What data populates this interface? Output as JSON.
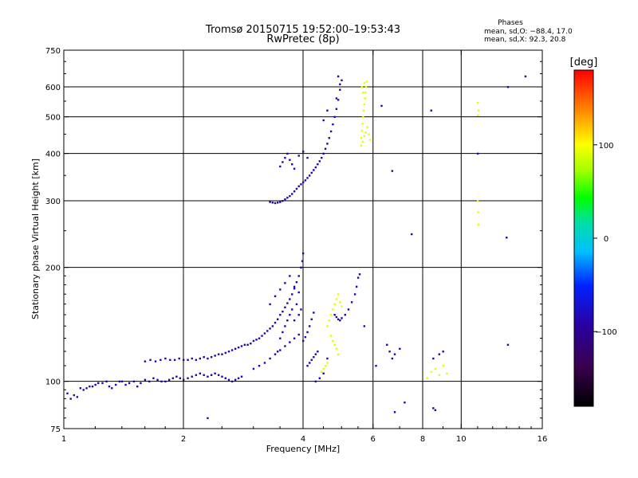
{
  "chart_data": {
    "type": "scatter",
    "title": "Tromsø 20150715 19:52:00–19:53:43",
    "subtitle": "RwPretec (8p)",
    "xlabel": "Frequency [MHz]",
    "ylabel": "Stationary phase Virtual Height [km]",
    "x_scale": "log",
    "y_scale": "log",
    "xlim": [
      1,
      16
    ],
    "ylim": [
      75,
      750
    ],
    "x_ticks": [
      1,
      2,
      4,
      6,
      8,
      10,
      16
    ],
    "x_tick_labels": [
      "1",
      "2",
      "4",
      "6",
      "8",
      "10",
      "16"
    ],
    "x_gridlines": [
      2,
      4,
      6,
      8,
      10
    ],
    "y_ticks": [
      75,
      100,
      200,
      300,
      400,
      500,
      600,
      750
    ],
    "y_tick_labels": [
      "75",
      "100",
      "200",
      "300",
      "400",
      "500",
      "600",
      "750"
    ],
    "y_gridlines": [
      100,
      200,
      300,
      400,
      500,
      600
    ],
    "grid": true,
    "phase_info": {
      "heading": "Phases",
      "line1": "mean, sd,O: −88.4, 17.0",
      "line2": "mean, sd,X:  92.3, 20.8"
    },
    "colorbar": {
      "label": "[deg]",
      "min": -180,
      "max": 180,
      "ticks": [
        100,
        0,
        -100
      ],
      "tick_labels": [
        "100",
        "0",
        "−100"
      ],
      "placement": "right"
    },
    "series": [
      {
        "mode": "O",
        "color_phase": -88.4,
        "points": [
          [
            1.02,
            93
          ],
          [
            1.04,
            90
          ],
          [
            1.06,
            92
          ],
          [
            1.08,
            91
          ],
          [
            1.1,
            96
          ],
          [
            1.12,
            95
          ],
          [
            1.14,
            96
          ],
          [
            1.16,
            97
          ],
          [
            1.18,
            97
          ],
          [
            1.2,
            98
          ],
          [
            1.22,
            99
          ],
          [
            1.25,
            99
          ],
          [
            1.28,
            100
          ],
          [
            1.3,
            97
          ],
          [
            1.32,
            96
          ],
          [
            1.35,
            98
          ],
          [
            1.38,
            100
          ],
          [
            1.4,
            100
          ],
          [
            1.43,
            98
          ],
          [
            1.46,
            99
          ],
          [
            1.5,
            100
          ],
          [
            1.53,
            97
          ],
          [
            1.56,
            99
          ],
          [
            1.6,
            101
          ],
          [
            1.64,
            100
          ],
          [
            1.68,
            102
          ],
          [
            1.72,
            101
          ],
          [
            1.76,
            100
          ],
          [
            1.8,
            100
          ],
          [
            1.84,
            101
          ],
          [
            1.88,
            102
          ],
          [
            1.92,
            103
          ],
          [
            1.96,
            102
          ],
          [
            2.0,
            101
          ],
          [
            2.05,
            102
          ],
          [
            2.1,
            103
          ],
          [
            2.15,
            104
          ],
          [
            2.2,
            105
          ],
          [
            2.25,
            104
          ],
          [
            2.3,
            103
          ],
          [
            2.35,
            104
          ],
          [
            2.4,
            105
          ],
          [
            2.45,
            104
          ],
          [
            2.5,
            103
          ],
          [
            2.55,
            102
          ],
          [
            2.6,
            101
          ],
          [
            2.65,
            100
          ],
          [
            2.7,
            101
          ],
          [
            2.75,
            102
          ],
          [
            2.8,
            103
          ],
          [
            1.6,
            113
          ],
          [
            1.65,
            114
          ],
          [
            1.7,
            113
          ],
          [
            1.75,
            114
          ],
          [
            1.8,
            115
          ],
          [
            1.85,
            114
          ],
          [
            1.9,
            114
          ],
          [
            1.95,
            115
          ],
          [
            2.0,
            114
          ],
          [
            2.05,
            114
          ],
          [
            2.1,
            115
          ],
          [
            2.15,
            114
          ],
          [
            2.2,
            115
          ],
          [
            2.25,
            116
          ],
          [
            2.3,
            115
          ],
          [
            2.35,
            116
          ],
          [
            2.4,
            117
          ],
          [
            2.45,
            118
          ],
          [
            2.5,
            118
          ],
          [
            2.55,
            119
          ],
          [
            2.6,
            120
          ],
          [
            2.65,
            121
          ],
          [
            2.7,
            122
          ],
          [
            2.75,
            123
          ],
          [
            2.8,
            124
          ],
          [
            2.85,
            125
          ],
          [
            2.9,
            125
          ],
          [
            2.95,
            126
          ],
          [
            3.0,
            128
          ],
          [
            3.05,
            129
          ],
          [
            3.1,
            130
          ],
          [
            3.15,
            132
          ],
          [
            3.2,
            134
          ],
          [
            3.25,
            136
          ],
          [
            3.3,
            138
          ],
          [
            3.35,
            140
          ],
          [
            3.4,
            143
          ],
          [
            3.45,
            146
          ],
          [
            3.5,
            150
          ],
          [
            3.55,
            153
          ],
          [
            3.6,
            157
          ],
          [
            3.65,
            161
          ],
          [
            3.7,
            165
          ],
          [
            3.75,
            170
          ],
          [
            3.8,
            176
          ],
          [
            3.85,
            183
          ],
          [
            3.9,
            190
          ],
          [
            3.95,
            200
          ],
          [
            3.98,
            208
          ],
          [
            4.0,
            218
          ],
          [
            3.0,
            108
          ],
          [
            3.1,
            110
          ],
          [
            3.2,
            112
          ],
          [
            3.3,
            115
          ],
          [
            3.4,
            118
          ],
          [
            3.5,
            121
          ],
          [
            3.6,
            124
          ],
          [
            3.7,
            127
          ],
          [
            3.8,
            130
          ],
          [
            3.9,
            133
          ],
          [
            4.0,
            128
          ],
          [
            4.05,
            131
          ],
          [
            4.1,
            135
          ],
          [
            4.15,
            140
          ],
          [
            4.2,
            146
          ],
          [
            4.25,
            152
          ],
          [
            4.1,
            110
          ],
          [
            4.15,
            112
          ],
          [
            4.2,
            114
          ],
          [
            4.25,
            116
          ],
          [
            4.3,
            118
          ],
          [
            4.35,
            120
          ],
          [
            3.3,
            160
          ],
          [
            3.4,
            168
          ],
          [
            3.5,
            175
          ],
          [
            3.6,
            182
          ],
          [
            3.7,
            190
          ],
          [
            3.8,
            178
          ],
          [
            3.9,
            172
          ],
          [
            3.85,
            160
          ],
          [
            3.5,
            130
          ],
          [
            3.55,
            135
          ],
          [
            3.6,
            140
          ],
          [
            3.65,
            145
          ],
          [
            3.7,
            150
          ],
          [
            3.75,
            155
          ],
          [
            3.8,
            145
          ],
          [
            3.9,
            150
          ],
          [
            3.95,
            155
          ],
          [
            3.45,
            120
          ],
          [
            3.3,
            298
          ],
          [
            3.35,
            297
          ],
          [
            3.4,
            296
          ],
          [
            3.45,
            297
          ],
          [
            3.5,
            298
          ],
          [
            3.55,
            300
          ],
          [
            3.6,
            303
          ],
          [
            3.65,
            306
          ],
          [
            3.7,
            309
          ],
          [
            3.75,
            313
          ],
          [
            3.8,
            318
          ],
          [
            3.85,
            323
          ],
          [
            3.9,
            328
          ],
          [
            3.95,
            332
          ],
          [
            4.0,
            336
          ],
          [
            4.05,
            340
          ],
          [
            4.1,
            345
          ],
          [
            4.15,
            350
          ],
          [
            4.2,
            356
          ],
          [
            4.25,
            362
          ],
          [
            4.3,
            368
          ],
          [
            4.35,
            375
          ],
          [
            4.4,
            382
          ],
          [
            4.45,
            390
          ],
          [
            4.5,
            400
          ],
          [
            4.55,
            412
          ],
          [
            4.6,
            425
          ],
          [
            4.65,
            440
          ],
          [
            4.7,
            458
          ],
          [
            4.75,
            478
          ],
          [
            4.8,
            500
          ],
          [
            4.85,
            525
          ],
          [
            4.9,
            555
          ],
          [
            4.95,
            590
          ],
          [
            5.0,
            625
          ],
          [
            4.9,
            640
          ],
          [
            4.95,
            610
          ],
          [
            4.85,
            560
          ],
          [
            4.6,
            520
          ],
          [
            4.5,
            490
          ],
          [
            3.5,
            370
          ],
          [
            3.55,
            380
          ],
          [
            3.6,
            390
          ],
          [
            3.65,
            400
          ],
          [
            3.7,
            385
          ],
          [
            3.75,
            375
          ],
          [
            3.8,
            365
          ],
          [
            3.9,
            395
          ],
          [
            4.0,
            405
          ],
          [
            4.1,
            390
          ],
          [
            4.8,
            150
          ],
          [
            4.85,
            148
          ],
          [
            4.9,
            146
          ],
          [
            4.95,
            145
          ],
          [
            5.0,
            147
          ],
          [
            5.1,
            150
          ],
          [
            5.2,
            155
          ],
          [
            5.3,
            162
          ],
          [
            5.4,
            170
          ],
          [
            5.45,
            178
          ],
          [
            5.5,
            188
          ],
          [
            5.55,
            192
          ],
          [
            6.5,
            125
          ],
          [
            6.6,
            120
          ],
          [
            6.7,
            115
          ],
          [
            6.8,
            118
          ],
          [
            7.0,
            122
          ],
          [
            8.5,
            115
          ],
          [
            8.8,
            118
          ],
          [
            9.0,
            120
          ],
          [
            6.7,
            360
          ],
          [
            7.5,
            245
          ],
          [
            8.4,
            520
          ],
          [
            11.0,
            400
          ],
          [
            13.1,
            600
          ],
          [
            14.5,
            640
          ],
          [
            13.0,
            240
          ],
          [
            13.1,
            125
          ],
          [
            6.3,
            535
          ],
          [
            7.2,
            88
          ],
          [
            8.5,
            85
          ],
          [
            8.6,
            84
          ],
          [
            6.8,
            83
          ],
          [
            2.3,
            80
          ],
          [
            4.6,
            115
          ],
          [
            5.7,
            140
          ],
          [
            6.1,
            110
          ],
          [
            4.5,
            105
          ],
          [
            4.4,
            102
          ],
          [
            4.3,
            100
          ]
        ]
      },
      {
        "mode": "X",
        "color_phase": 92.3,
        "points": [
          [
            5.6,
            440
          ],
          [
            5.62,
            460
          ],
          [
            5.64,
            480
          ],
          [
            5.66,
            500
          ],
          [
            5.68,
            520
          ],
          [
            5.7,
            540
          ],
          [
            5.72,
            560
          ],
          [
            5.74,
            580
          ],
          [
            5.76,
            600
          ],
          [
            5.78,
            620
          ],
          [
            5.6,
            420
          ],
          [
            5.65,
            430
          ],
          [
            5.7,
            445
          ],
          [
            5.75,
            455
          ],
          [
            5.8,
            470
          ],
          [
            5.85,
            450
          ],
          [
            5.9,
            435
          ],
          [
            5.62,
            600
          ],
          [
            5.66,
            580
          ],
          [
            5.7,
            615
          ],
          [
            4.6,
            140
          ],
          [
            4.65,
            145
          ],
          [
            4.7,
            150
          ],
          [
            4.75,
            155
          ],
          [
            4.8,
            160
          ],
          [
            4.85,
            165
          ],
          [
            4.9,
            170
          ],
          [
            4.95,
            162
          ],
          [
            5.0,
            158
          ],
          [
            4.7,
            132
          ],
          [
            4.75,
            128
          ],
          [
            4.8,
            125
          ],
          [
            4.85,
            122
          ],
          [
            4.9,
            118
          ],
          [
            4.6,
            112
          ],
          [
            4.55,
            110
          ],
          [
            4.5,
            108
          ],
          [
            4.45,
            106
          ],
          [
            8.4,
            106
          ],
          [
            8.6,
            108
          ],
          [
            8.8,
            104
          ],
          [
            9.0,
            110
          ],
          [
            9.2,
            105
          ],
          [
            8.2,
            102
          ],
          [
            11.0,
            300
          ],
          [
            11.02,
            280
          ],
          [
            11.04,
            260
          ],
          [
            11.0,
            545
          ],
          [
            11.05,
            520
          ],
          [
            11.0,
            505
          ]
        ]
      }
    ]
  }
}
